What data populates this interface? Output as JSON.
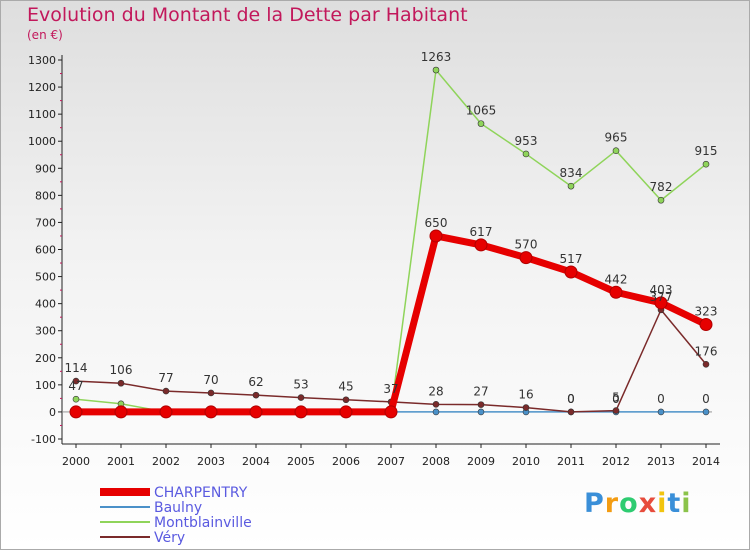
{
  "header": {
    "title": "Evolution du Montant de la Dette par Habitant",
    "subtitle": "(en €)"
  },
  "logo": {
    "text": [
      "P",
      "r",
      "o",
      "x",
      "i",
      "t",
      "i"
    ],
    "colors": [
      "#3a8fd8",
      "#f39c12",
      "#2ecc71",
      "#e74c3c",
      "#f1c40f",
      "#3a8fd8",
      "#8bc34a"
    ]
  },
  "chart_data": {
    "type": "line",
    "title": "Evolution du Montant de la Dette par Habitant",
    "subtitle": "(en €)",
    "x": [
      "2000",
      "2001",
      "2002",
      "2003",
      "2004",
      "2005",
      "2006",
      "2007",
      "2008",
      "2009",
      "2010",
      "2011",
      "2012",
      "2013",
      "2014"
    ],
    "yticks": [
      -100,
      0,
      100,
      200,
      300,
      400,
      500,
      600,
      700,
      800,
      900,
      1000,
      1100,
      1200,
      1300
    ],
    "ylim": [
      -100,
      1300
    ],
    "grid": false,
    "legend": "bottom-left",
    "series": [
      {
        "name": "Baulny",
        "color": "#4a90c8",
        "width": 1.5,
        "marker": 3,
        "values": [
          0,
          0,
          0,
          0,
          0,
          0,
          0,
          0,
          0,
          0,
          0,
          0,
          0,
          0,
          0
        ],
        "labels": [
          "",
          "",
          "",
          "",
          "",
          "",
          "",
          "",
          "",
          "",
          "",
          "0",
          "0",
          "0",
          "0"
        ]
      },
      {
        "name": "Montblainville",
        "color": "#8fd45a",
        "width": 1.5,
        "marker": 3,
        "values": [
          47,
          30,
          0,
          0,
          0,
          0,
          0,
          0,
          1263,
          1065,
          953,
          834,
          965,
          782,
          915
        ],
        "labels": [
          "47",
          "",
          "",
          "",
          "",
          "",
          "",
          "",
          "1263",
          "1065",
          "953",
          "834",
          "965",
          "782",
          "915"
        ]
      },
      {
        "name": "Véry",
        "color": "#7a2a2a",
        "width": 1.5,
        "marker": 3,
        "values": [
          114,
          106,
          77,
          70,
          62,
          53,
          45,
          37,
          28,
          27,
          16,
          0,
          5,
          377,
          176
        ],
        "labels": [
          "114",
          "106",
          "77",
          "70",
          "62",
          "53",
          "45",
          "37",
          "28",
          "27",
          "16",
          "0",
          "5",
          "377",
          "176"
        ]
      },
      {
        "name": "CHARPENTRY",
        "color": "#e60000",
        "width": 7,
        "marker": 6,
        "values": [
          0,
          0,
          0,
          0,
          0,
          0,
          0,
          0,
          650,
          617,
          570,
          517,
          442,
          403,
          323
        ],
        "labels": [
          "",
          "",
          "",
          "",
          "",
          "",
          "",
          "",
          "650",
          "617",
          "570",
          "517",
          "442",
          "403",
          "323"
        ]
      }
    ],
    "legend_order": [
      "CHARPENTRY",
      "Baulny",
      "Montblainville",
      "Véry"
    ]
  }
}
